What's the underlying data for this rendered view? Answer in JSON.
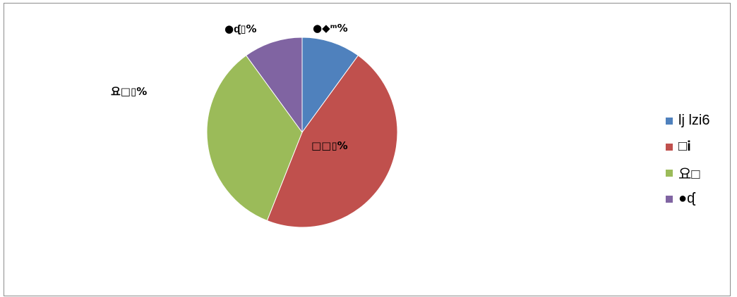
{
  "chart_data": {
    "type": "pie",
    "categories": [
      "lj lzi6",
      "□𝐢",
      "요□",
      "●ᶑ"
    ],
    "values": [
      10,
      46,
      34,
      10
    ],
    "colors": [
      "#4f81bd",
      "#c0504d",
      "#9bbb59",
      "#8064a2"
    ],
    "data_labels": [
      "●◆ᵐ%",
      "□□▯%",
      "요□▯%",
      "●ᶑ▯%"
    ],
    "legend_position": "right",
    "title": ""
  }
}
